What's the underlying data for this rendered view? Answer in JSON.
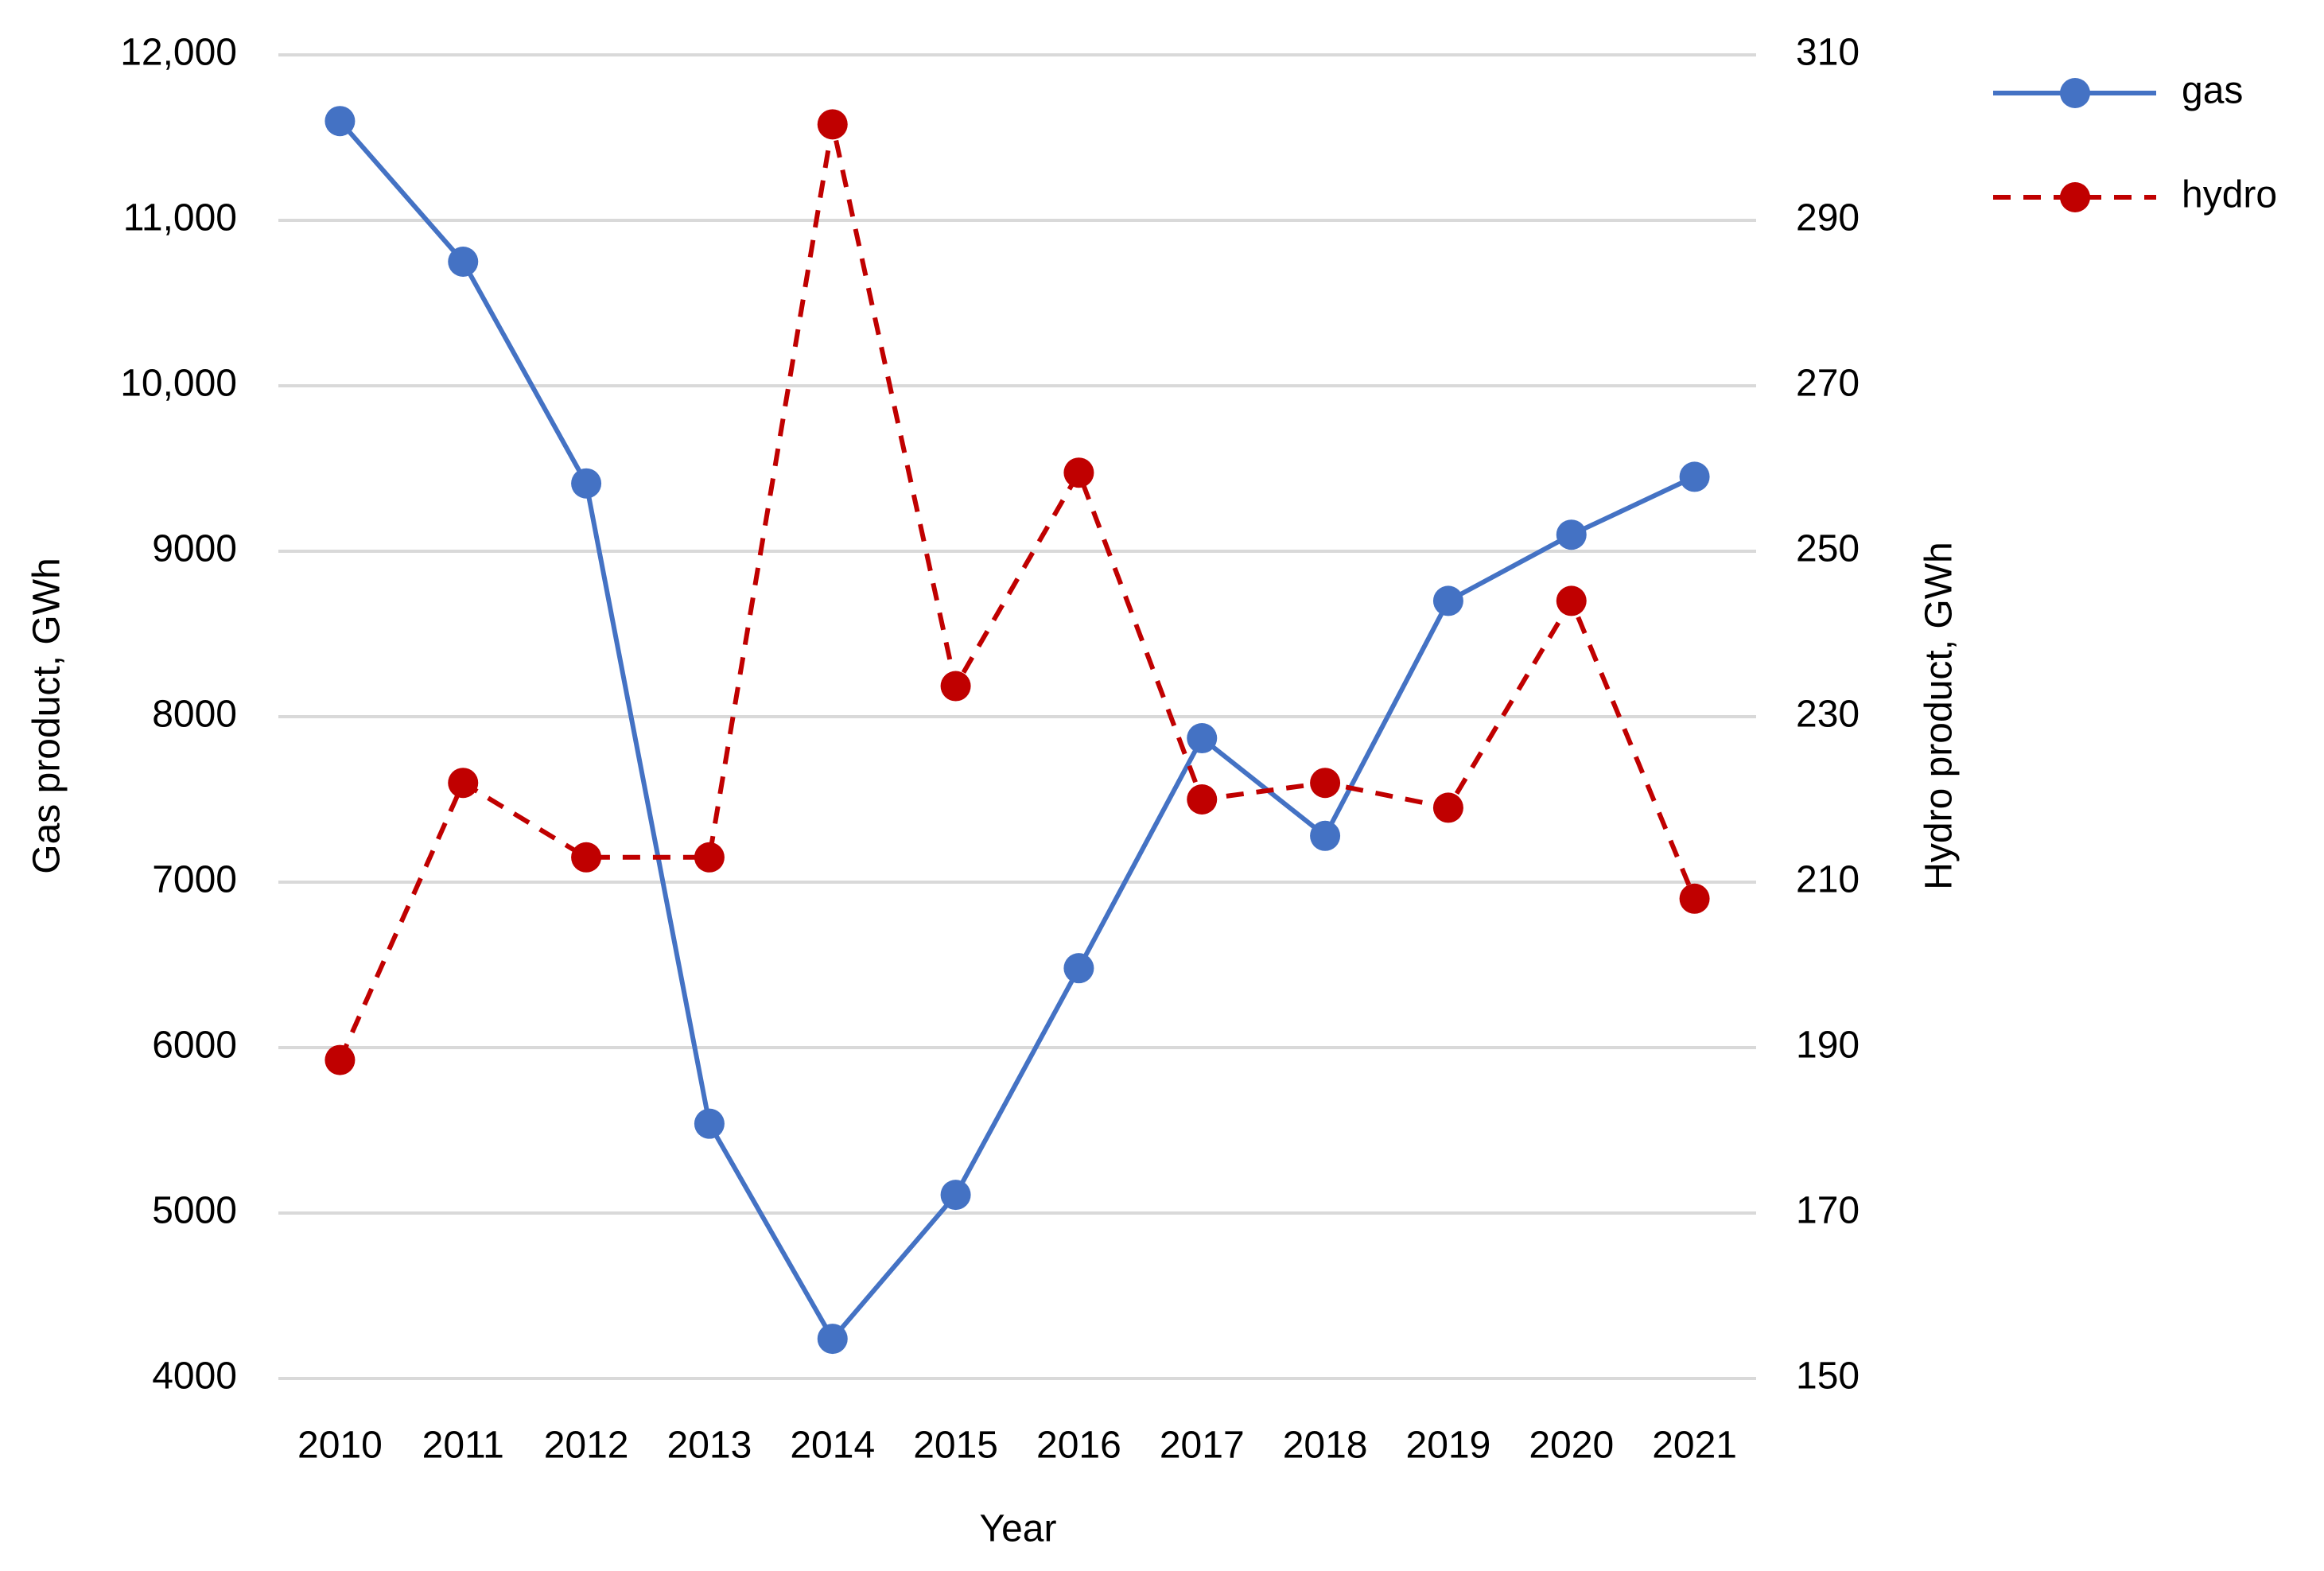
{
  "chart_data": {
    "type": "line",
    "x_label": "Year",
    "y_label": "Gas product, GWh",
    "y2_label": "Hydro product, GWh",
    "categories": [
      "2010",
      "2011",
      "2012",
      "2013",
      "2014",
      "2015",
      "2016",
      "2017",
      "2018",
      "2019",
      "2020",
      "2021"
    ],
    "series": [
      {
        "name": "gas",
        "color": "#4472c4",
        "line_style": "solid",
        "axis": "y",
        "values": [
          11600,
          10750,
          9410,
          5540,
          4240,
          5110,
          6480,
          7870,
          7280,
          8700,
          9100,
          9450
        ]
      },
      {
        "name": "hydro",
        "color": "#c00000",
        "line_style": "dashed",
        "axis": "y2",
        "values": [
          188.5,
          222,
          213,
          213,
          301.6,
          233.7,
          259.5,
          220,
          222,
          219,
          244,
          208
        ]
      }
    ],
    "ylim": [
      4000,
      12000
    ],
    "yticks": [
      4000,
      5000,
      6000,
      7000,
      8000,
      9000,
      {
        "value": 10000,
        "label": "10,000"
      },
      {
        "value": 11000,
        "label": "11,000"
      },
      {
        "value": 12000,
        "label": "12,000"
      }
    ],
    "y2lim": [
      150,
      310
    ],
    "y2ticks": [
      150,
      170,
      190,
      210,
      230,
      250,
      270,
      290,
      310
    ],
    "grid": true,
    "legend": "top-right"
  }
}
